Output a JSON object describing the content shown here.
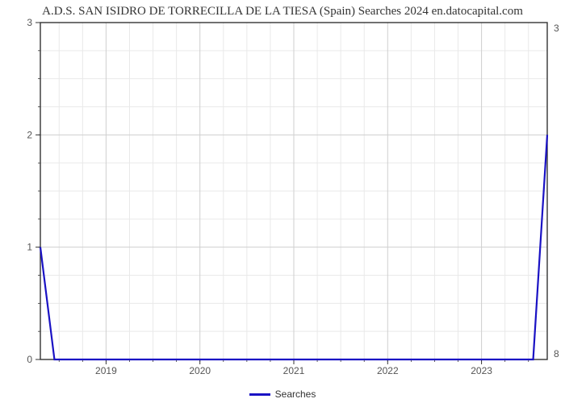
{
  "chart": {
    "type": "line",
    "title": "A.D.S.  SAN ISIDRO  DE TORRECILLA DE LA TIESA (Spain) Searches 2024 en.datocapital.com",
    "title_fontsize": 15,
    "title_color": "#333333",
    "background_color": "#ffffff",
    "plot_border_color": "#333333",
    "plot_border_width": 1.4,
    "x": {
      "min": 2018.3,
      "max": 2023.7,
      "tick_values": [
        2019,
        2020,
        2021,
        2022,
        2023
      ],
      "tick_labels": [
        "2019",
        "2020",
        "2021",
        "2022",
        "2023"
      ],
      "minor_step": 0.25,
      "label_fontsize": 12,
      "label_color": "#555555"
    },
    "y_left": {
      "min": 0,
      "max": 3,
      "tick_values": [
        0,
        1,
        2,
        3
      ],
      "tick_labels": [
        "0",
        "1",
        "2",
        "3"
      ],
      "label_fontsize": 12,
      "label_color": "#555555"
    },
    "y_right": {
      "tick_values": [
        0.05,
        2.95
      ],
      "tick_labels": [
        "8",
        "3"
      ],
      "label_fontsize": 12,
      "label_color": "#555555"
    },
    "grid": {
      "major_color": "#cfcfcf",
      "minor_color": "#e9e9e9",
      "major_width": 1,
      "minor_width": 1
    },
    "series": {
      "name": "Searches",
      "color": "#1a12c4",
      "width": 2.2,
      "points": [
        [
          2018.3,
          1.0
        ],
        [
          2018.45,
          0.0
        ],
        [
          2023.55,
          0.0
        ],
        [
          2023.7,
          2.0
        ]
      ]
    },
    "legend": {
      "label": "Searches",
      "color": "#1a12c4",
      "fontsize": 12
    }
  }
}
